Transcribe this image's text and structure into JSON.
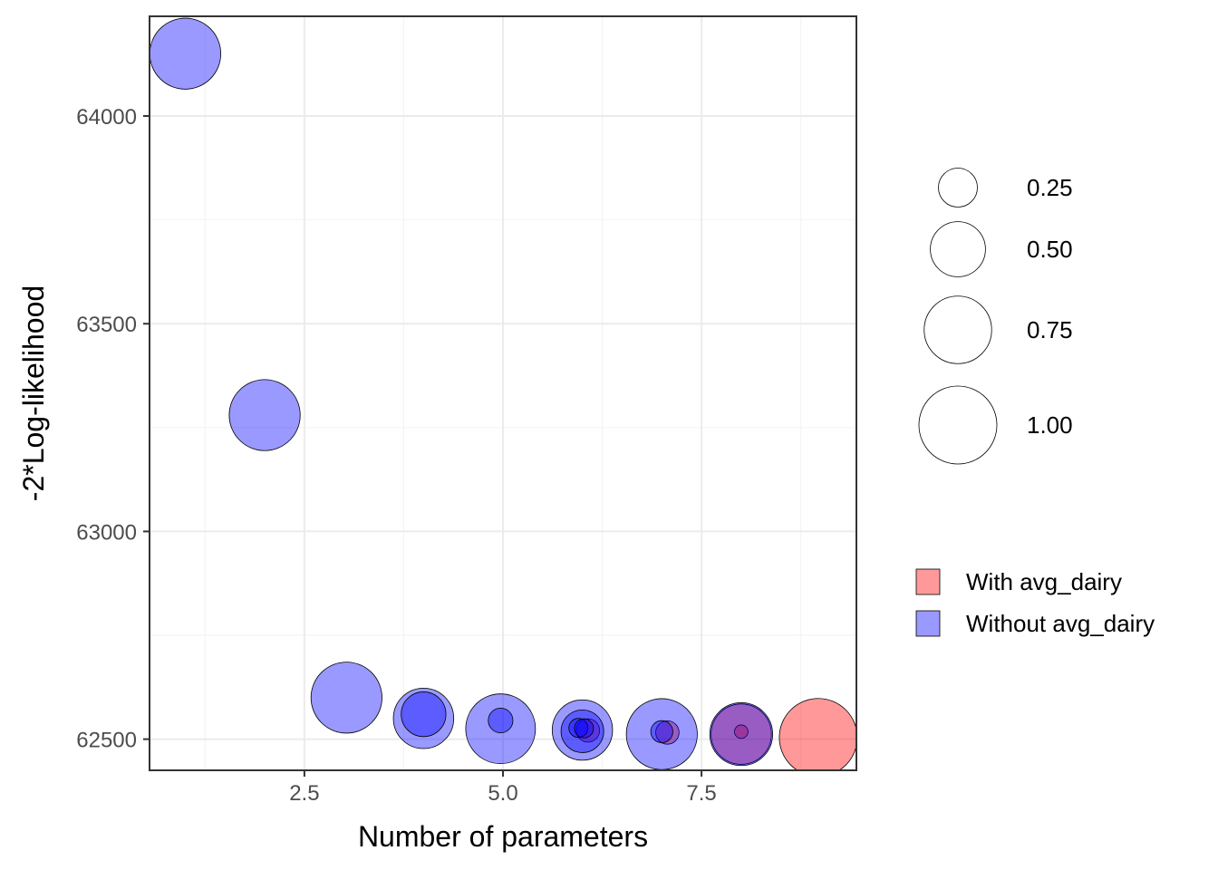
{
  "chart_data": {
    "type": "scatter",
    "xlabel": "Number of parameters",
    "ylabel": "-2*Log-likelihood",
    "xlim": [
      0.55,
      9.45
    ],
    "ylim": [
      62425,
      64240
    ],
    "x_ticks": [
      2.5,
      5.0,
      7.5
    ],
    "x_tick_labels": [
      "2.5",
      "5.0",
      "7.5"
    ],
    "y_ticks": [
      62500,
      63000,
      63500,
      64000
    ],
    "y_tick_labels": [
      "62500",
      "63000",
      "63500",
      "64000"
    ],
    "grid": true,
    "size_legend": {
      "values": [
        0.25,
        0.5,
        0.75,
        1.0
      ],
      "labels": [
        "0.25",
        "0.50",
        "0.75",
        "1.00"
      ]
    },
    "color_legend": {
      "position": "right",
      "entries": [
        {
          "label": "With avg_dairy",
          "color": "#ff0000"
        },
        {
          "label": "Without avg_dairy",
          "color": "#0000ff"
        }
      ]
    },
    "series": [
      {
        "name": "With avg_dairy",
        "color": "#ff0000",
        "points": [
          {
            "x": 6.07,
            "y": 62521,
            "size": 0.09
          },
          {
            "x": 7.07,
            "y": 62516,
            "size": 0.09
          },
          {
            "x": 8.0,
            "y": 62512,
            "size": 0.6
          },
          {
            "x": 8.0,
            "y": 62518,
            "size": 0.03
          },
          {
            "x": 8.97,
            "y": 62504,
            "size": 1.0
          }
        ]
      },
      {
        "name": "Without avg_dairy",
        "color": "#0000ff",
        "points": [
          {
            "x": 1.0,
            "y": 64150,
            "size": 0.83
          },
          {
            "x": 2.0,
            "y": 63280,
            "size": 0.83
          },
          {
            "x": 3.03,
            "y": 62600,
            "size": 0.83
          },
          {
            "x": 4.0,
            "y": 62550,
            "size": 0.6
          },
          {
            "x": 4.0,
            "y": 62560,
            "size": 0.33
          },
          {
            "x": 4.97,
            "y": 62525,
            "size": 0.8
          },
          {
            "x": 4.97,
            "y": 62545,
            "size": 0.1
          },
          {
            "x": 6.0,
            "y": 62522,
            "size": 0.6
          },
          {
            "x": 6.0,
            "y": 62519,
            "size": 0.3
          },
          {
            "x": 5.95,
            "y": 62527,
            "size": 0.06
          },
          {
            "x": 6.02,
            "y": 62526,
            "size": 0.06
          },
          {
            "x": 7.0,
            "y": 62512,
            "size": 0.83
          },
          {
            "x": 7.0,
            "y": 62518,
            "size": 0.08
          },
          {
            "x": 8.0,
            "y": 62512,
            "size": 0.65
          }
        ]
      }
    ]
  }
}
